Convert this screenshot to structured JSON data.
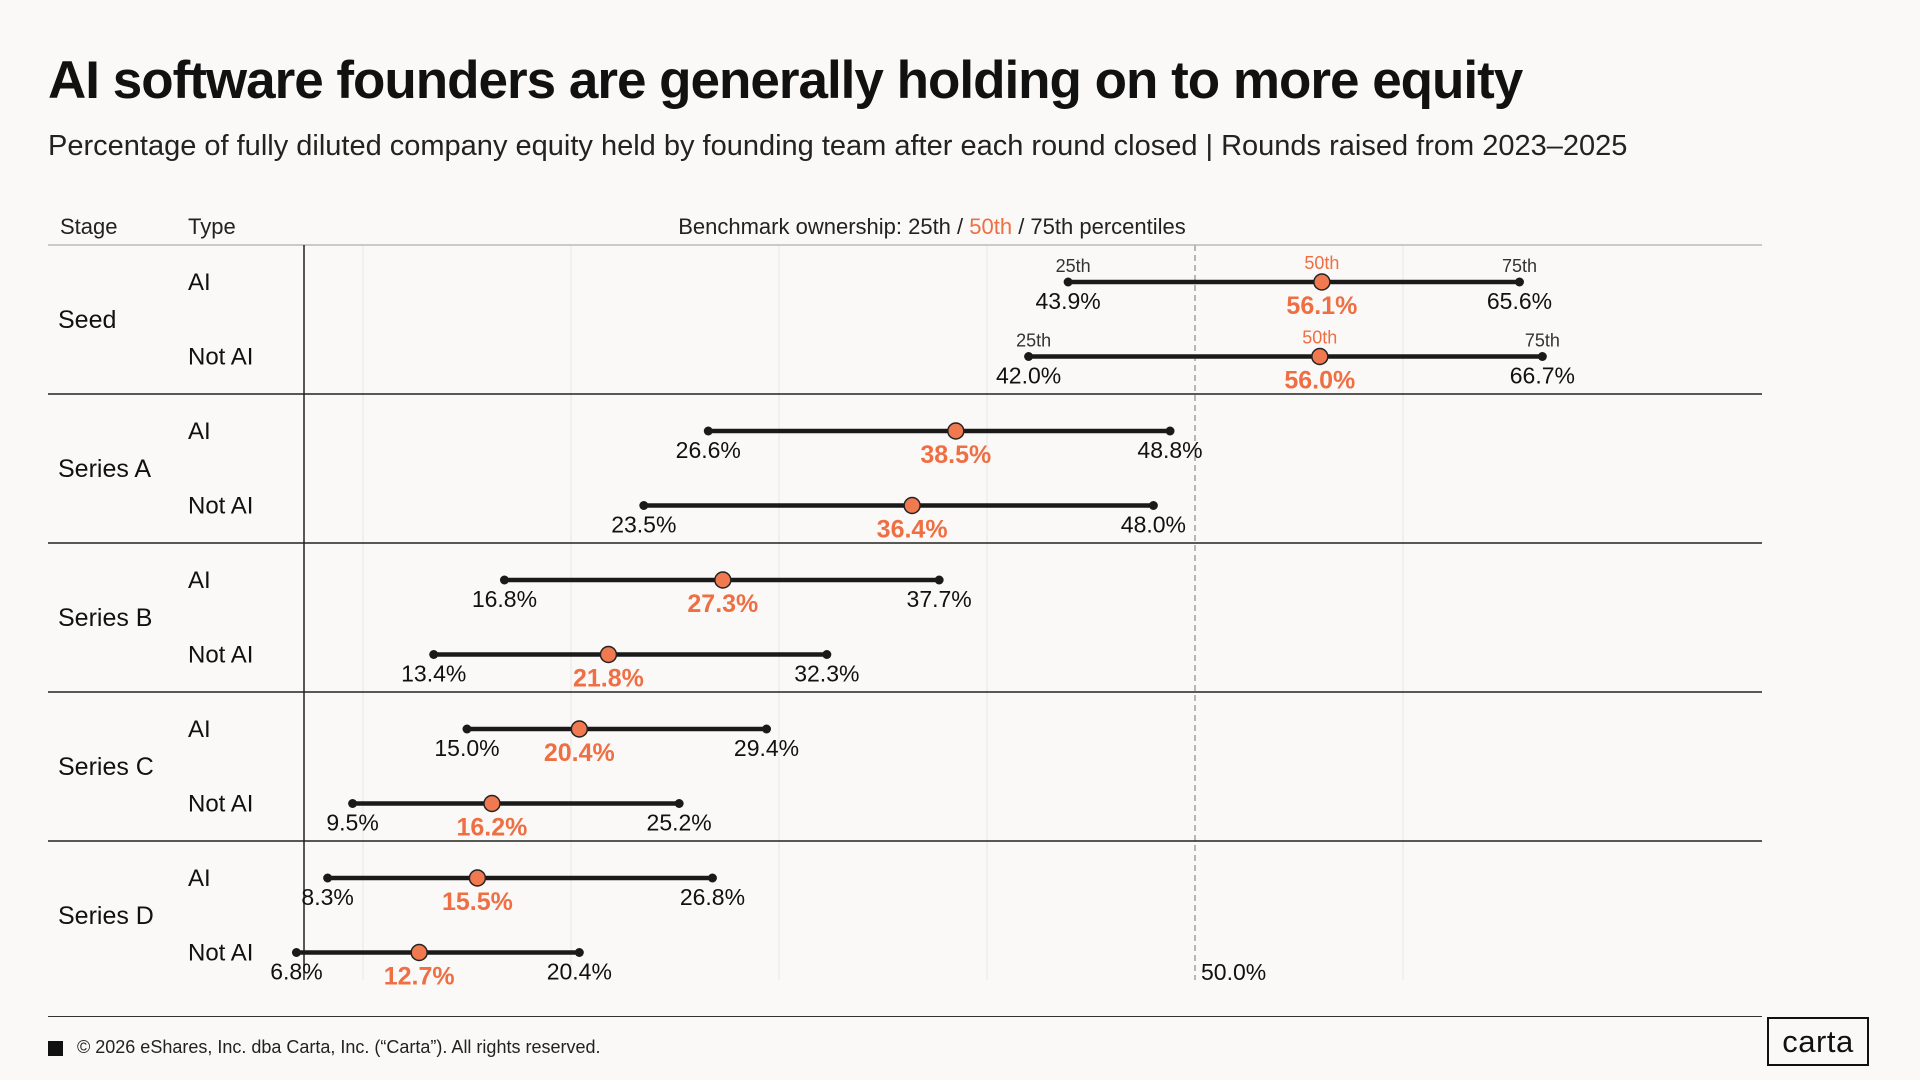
{
  "header": {
    "title": "AI software founders are generally holding on to more equity",
    "subtitle": "Percentage of fully diluted company equity held by founding team after each round closed | Rounds raised from 2023–2025"
  },
  "columns": {
    "stage": "Stage",
    "type": "Type",
    "benchmark_prefix": "Benchmark ownership: 25th / ",
    "benchmark_mid": "50th",
    "benchmark_suffix": " / 75th percentiles"
  },
  "colors": {
    "accent": "#f0794f",
    "accent_text": "#ee6f43",
    "line": "#1a1a1a",
    "reference": "#999999",
    "grid": "#e9e6e2"
  },
  "chart_data": {
    "type": "dumbbell",
    "xlim": [
      0,
      70
    ],
    "reference_line": {
      "value": 50,
      "label": "50.0%"
    },
    "percentile_labels": [
      "25th",
      "50th",
      "75th"
    ],
    "rows": [
      {
        "stage": "Seed",
        "type": "AI",
        "p25": 43.9,
        "p50": 56.1,
        "p75": 65.6,
        "p25_label": "43.9%",
        "p50_label": "56.1%",
        "p75_label": "65.6%"
      },
      {
        "stage": "Seed",
        "type": "Not AI",
        "p25": 42.0,
        "p50": 56.0,
        "p75": 66.7,
        "p25_label": "42.0%",
        "p50_label": "56.0%",
        "p75_label": "66.7%"
      },
      {
        "stage": "Series A",
        "type": "AI",
        "p25": 26.6,
        "p50": 38.5,
        "p75": 48.8,
        "p25_label": "26.6%",
        "p50_label": "38.5%",
        "p75_label": "48.8%"
      },
      {
        "stage": "Series A",
        "type": "Not AI",
        "p25": 23.5,
        "p50": 36.4,
        "p75": 48.0,
        "p25_label": "23.5%",
        "p50_label": "36.4%",
        "p75_label": "48.0%"
      },
      {
        "stage": "Series B",
        "type": "AI",
        "p25": 16.8,
        "p50": 27.3,
        "p75": 37.7,
        "p25_label": "16.8%",
        "p50_label": "27.3%",
        "p75_label": "37.7%"
      },
      {
        "stage": "Series B",
        "type": "Not AI",
        "p25": 13.4,
        "p50": 21.8,
        "p75": 32.3,
        "p25_label": "13.4%",
        "p50_label": "21.8%",
        "p75_label": "32.3%"
      },
      {
        "stage": "Series C",
        "type": "AI",
        "p25": 15.0,
        "p50": 20.4,
        "p75": 29.4,
        "p25_label": "15.0%",
        "p50_label": "20.4%",
        "p75_label": "29.4%"
      },
      {
        "stage": "Series C",
        "type": "Not AI",
        "p25": 9.5,
        "p50": 16.2,
        "p75": 25.2,
        "p25_label": "9.5%",
        "p50_label": "16.2%",
        "p75_label": "25.2%"
      },
      {
        "stage": "Series D",
        "type": "AI",
        "p25": 8.3,
        "p50": 15.5,
        "p75": 26.8,
        "p25_label": "8.3%",
        "p50_label": "15.5%",
        "p75_label": "26.8%"
      },
      {
        "stage": "Series D",
        "type": "Not AI",
        "p25": 6.8,
        "p50": 12.7,
        "p75": 20.4,
        "p25_label": "6.8%",
        "p50_label": "12.7%",
        "p75_label": "20.4%"
      }
    ]
  },
  "footer": {
    "copyright": "© 2026 eShares, Inc. dba Carta, Inc. (“Carta”). All rights reserved.",
    "logo": "carta"
  }
}
